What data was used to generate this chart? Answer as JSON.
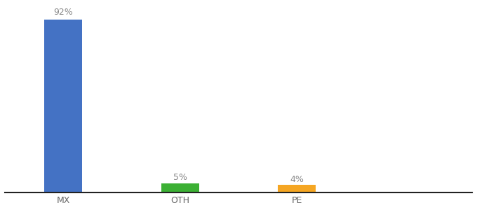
{
  "categories": [
    "MX",
    "OTH",
    "PE"
  ],
  "values": [
    92,
    5,
    4
  ],
  "bar_colors": [
    "#4472c4",
    "#3cb034",
    "#f5a623"
  ],
  "labels": [
    "92%",
    "5%",
    "4%"
  ],
  "ylim": [
    0,
    100
  ],
  "background_color": "#ffffff",
  "bar_width": 0.65,
  "label_fontsize": 9,
  "tick_fontsize": 9,
  "label_color": "#888888",
  "tick_color": "#666666",
  "spine_color": "#222222"
}
